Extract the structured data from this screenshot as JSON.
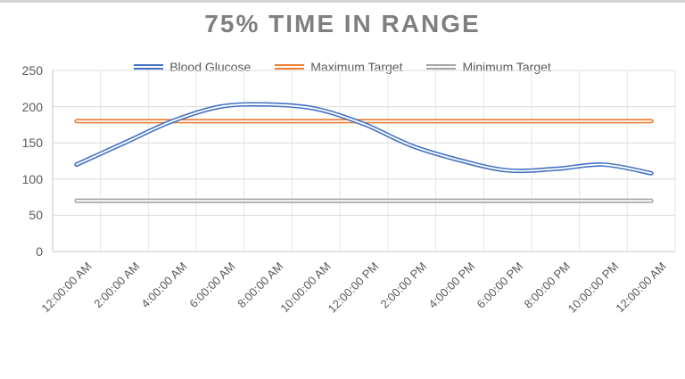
{
  "title": "75% TIME IN RANGE",
  "legend": [
    {
      "label": "Blood Glucose",
      "color": "#4472C4"
    },
    {
      "label": "Maximum Target",
      "color": "#ED7D31"
    },
    {
      "label": "Minimum Target",
      "color": "#A5A5A5"
    }
  ],
  "chart_data": {
    "type": "line",
    "title": "75% TIME IN RANGE",
    "categories": [
      "12:00:00 AM",
      "2:00:00 AM",
      "4:00:00 AM",
      "6:00:00 AM",
      "8:00:00 AM",
      "10:00:00 AM",
      "12:00:00 PM",
      "2:00:00 PM",
      "4:00:00 PM",
      "6:00:00 PM",
      "8:00:00 PM",
      "10:00:00 PM",
      "12:00:00 AM"
    ],
    "series": [
      {
        "name": "Blood Glucose",
        "color": "#4472C4",
        "smooth": true,
        "values": [
          120,
          150,
          180,
          200,
          203,
          197,
          176,
          146,
          126,
          112,
          114,
          120,
          108
        ]
      },
      {
        "name": "Maximum Target",
        "color": "#ED7D31",
        "smooth": false,
        "values": [
          180,
          180,
          180,
          180,
          180,
          180,
          180,
          180,
          180,
          180,
          180,
          180,
          180
        ]
      },
      {
        "name": "Minimum Target",
        "color": "#A5A5A5",
        "smooth": false,
        "values": [
          70,
          70,
          70,
          70,
          70,
          70,
          70,
          70,
          70,
          70,
          70,
          70,
          70
        ]
      }
    ],
    "ylim": [
      0,
      250
    ],
    "yticks": [
      0,
      50,
      100,
      150,
      200,
      250
    ],
    "grid": true,
    "legend_position": "top",
    "line_style": "double"
  },
  "colors": {
    "title_text": "#7f7f7f",
    "axis_text": "#595959",
    "gridline_h": "#dcdcdc",
    "gridline_v": "#e6e6e6",
    "axis_line": "#c9c9c9",
    "line_core": "#ffffff",
    "top_border": "#d4d4d4"
  }
}
